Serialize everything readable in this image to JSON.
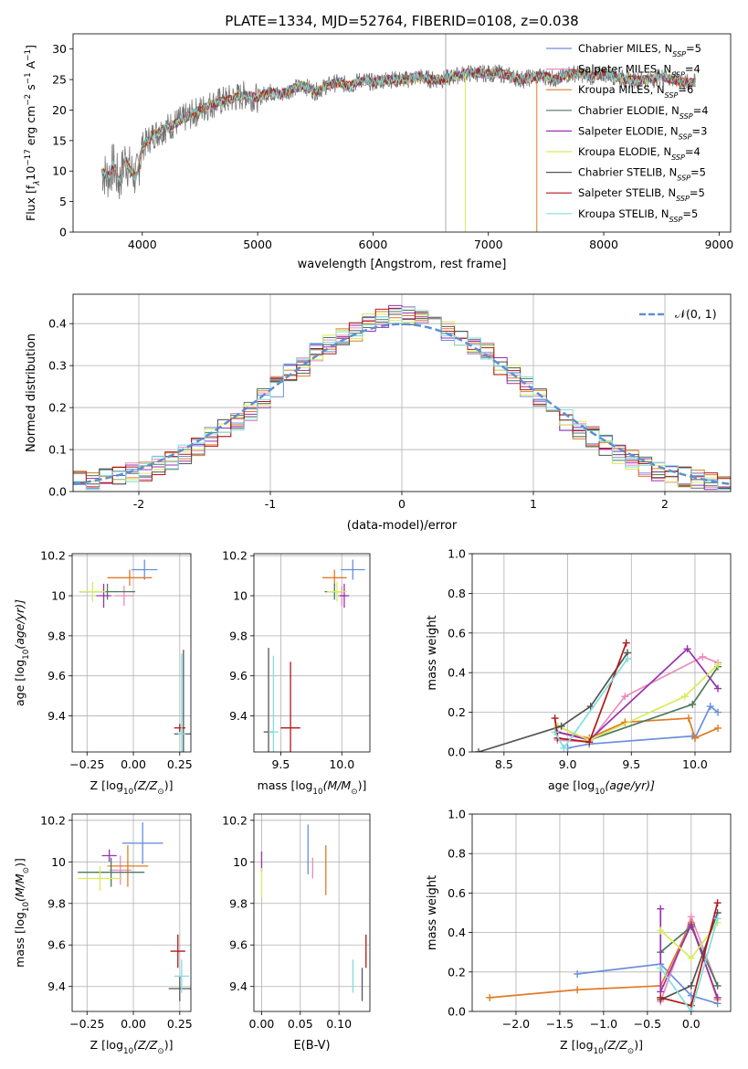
{
  "title": "PLATE=1334, MJD=52764, FIBERID=0108, z=0.038",
  "colors": {
    "Chabrier MILES": "#6a8fdc",
    "Salpeter MILES": "#e88cbc",
    "Kroupa MILES": "#e07b25",
    "Chabrier ELODIE": "#4c7a5c",
    "Salpeter ELODIE": "#9b30b0",
    "Kroupa ELODIE": "#d8ec5a",
    "Chabrier STELIB": "#555555",
    "Salpeter STELIB": "#b01818",
    "Kroupa STELIB": "#80dede"
  },
  "chart_data": [
    {
      "type": "line",
      "name": "spectrum",
      "xlabel": "wavelength [Angstrom, rest frame]",
      "ylabel": "Flux [f",
      "ylabel_parts": [
        "Flux [f",
        "λ",
        "10",
        "−17",
        " erg cm",
        "−2",
        " s",
        "−1",
        " A",
        "−1",
        "]"
      ],
      "xlim": [
        3400,
        9100
      ],
      "ylim": [
        0,
        32.5
      ],
      "xticks": [
        4000,
        5000,
        6000,
        7000,
        8000,
        9000
      ],
      "yticks": [
        0,
        5,
        10,
        15,
        20,
        25,
        30
      ],
      "grid": false,
      "legend": "upper right",
      "data_x": [
        3650,
        3700,
        3750,
        3800,
        3850,
        3900,
        3950,
        4000,
        4100,
        4200,
        4300,
        4400,
        4500,
        4600,
        4700,
        4800,
        4900,
        5000,
        5100,
        5200,
        5300,
        5400,
        5500,
        5600,
        5700,
        5800,
        5900,
        6000,
        6100,
        6200,
        6300,
        6400,
        6500,
        6600,
        6700,
        6800,
        6900,
        7000,
        7100,
        7200,
        7300,
        7400,
        7500,
        7600,
        7700,
        7800,
        7900,
        8000,
        8100,
        8200,
        8300,
        8400,
        8500,
        8600,
        8700,
        8800
      ],
      "data_y": [
        10,
        9,
        11,
        8,
        12,
        10,
        9,
        14,
        16,
        17,
        18,
        19,
        20,
        21,
        21.5,
        22,
        22.5,
        22,
        23,
        22.5,
        23.5,
        24,
        23,
        24,
        24.5,
        24,
        25,
        24.5,
        25,
        25,
        25,
        25.5,
        25,
        25,
        25.5,
        26,
        26,
        26,
        26,
        25.5,
        25,
        25.5,
        25.5,
        25,
        26,
        26,
        25.5,
        26,
        25.5,
        25,
        25,
        25,
        25.5,
        25,
        24.5,
        24.5
      ],
      "series": [
        {
          "name": "Chabrier MILES, N",
          "sub": "SSP",
          "suffix": "=5"
        },
        {
          "name": "Salpeter MILES, N",
          "sub": "SSP",
          "suffix": "=4"
        },
        {
          "name": "Kroupa MILES, N",
          "sub": "SSP",
          "suffix": "=6"
        },
        {
          "name": "Chabrier ELODIE, N",
          "sub": "SSP",
          "suffix": "=4"
        },
        {
          "name": "Salpeter ELODIE, N",
          "sub": "SSP",
          "suffix": "=3"
        },
        {
          "name": "Kroupa ELODIE, N",
          "sub": "SSP",
          "suffix": "=4"
        },
        {
          "name": "Chabrier STELIB, N",
          "sub": "SSP",
          "suffix": "=5"
        },
        {
          "name": "Salpeter STELIB, N",
          "sub": "SSP",
          "suffix": "=5"
        },
        {
          "name": "Kroupa STELIB, N",
          "sub": "SSP",
          "suffix": "=5"
        }
      ]
    },
    {
      "type": "line",
      "name": "residual_histogram",
      "xlabel": "(data-model)/error",
      "ylabel": "Normed distribution",
      "xlim": [
        -2.5,
        2.5
      ],
      "ylim": [
        0,
        0.47
      ],
      "xticks": [
        -2,
        -1,
        0,
        1,
        2
      ],
      "yticks": [
        0.0,
        0.1,
        0.2,
        0.3,
        0.4
      ],
      "grid": true,
      "legend": "upper right",
      "legend_label": "𝒩(0, 1)",
      "bin_width": 0.1,
      "hist_x": [
        -2.5,
        -2.4,
        -2.3,
        -2.2,
        -2.1,
        -2.0,
        -1.9,
        -1.8,
        -1.7,
        -1.6,
        -1.5,
        -1.4,
        -1.3,
        -1.2,
        -1.1,
        -1.0,
        -0.9,
        -0.8,
        -0.7,
        -0.6,
        -0.5,
        -0.4,
        -0.3,
        -0.2,
        -0.1,
        0.0,
        0.1,
        0.2,
        0.3,
        0.4,
        0.5,
        0.6,
        0.7,
        0.8,
        0.9,
        1.0,
        1.1,
        1.2,
        1.3,
        1.4,
        1.5,
        1.6,
        1.7,
        1.8,
        1.9,
        2.0,
        2.1,
        2.2,
        2.3,
        2.4
      ],
      "hist_y": [
        0.025,
        0.022,
        0.03,
        0.035,
        0.045,
        0.05,
        0.06,
        0.075,
        0.09,
        0.11,
        0.13,
        0.15,
        0.17,
        0.19,
        0.22,
        0.25,
        0.28,
        0.3,
        0.33,
        0.35,
        0.37,
        0.38,
        0.4,
        0.41,
        0.42,
        0.42,
        0.41,
        0.4,
        0.38,
        0.37,
        0.35,
        0.33,
        0.3,
        0.28,
        0.25,
        0.22,
        0.2,
        0.17,
        0.15,
        0.13,
        0.11,
        0.09,
        0.075,
        0.06,
        0.05,
        0.04,
        0.035,
        0.03,
        0.025,
        0.02
      ],
      "series": [
        {
          "name": "𝒩(0, 1)",
          "type": "gaussian",
          "mu": 0,
          "sigma": 1
        }
      ]
    },
    {
      "type": "scatter",
      "name": "age_vs_Z",
      "xlabel": "Z [log",
      "xlabel_parts": [
        "Z [log",
        "10",
        "(Z/Z",
        "⊙",
        ")]"
      ],
      "ylabel_parts": [
        "age  [log",
        "10",
        "(age/yr)]"
      ],
      "xlim": [
        -0.33,
        0.31
      ],
      "ylim": [
        9.22,
        10.21
      ],
      "xticks": [
        -0.25,
        0.0,
        0.25
      ],
      "xticklabels": [
        "−0.25",
        "0.00",
        "0.25"
      ],
      "yticks": [
        9.4,
        9.6,
        9.8,
        10.0,
        10.2
      ],
      "grid": true,
      "points": [
        {
          "series": "Chabrier MILES",
          "x": 0.06,
          "y": 10.13,
          "xerr": 0.07,
          "yerr": 0.05
        },
        {
          "series": "Salpeter MILES",
          "x": -0.05,
          "y": 10.0,
          "xerr": 0.05,
          "yerr": 0.05
        },
        {
          "series": "Kroupa MILES",
          "x": -0.02,
          "y": 10.09,
          "xerr": 0.12,
          "yerr": 0.04
        },
        {
          "series": "Chabrier ELODIE",
          "x": -0.14,
          "y": 10.02,
          "xerr": 0.15,
          "yerr": 0.04
        },
        {
          "series": "Salpeter ELODIE",
          "x": -0.16,
          "y": 10.0,
          "xerr": 0.04,
          "yerr": 0.06
        },
        {
          "series": "Kroupa ELODIE",
          "x": -0.22,
          "y": 10.02,
          "xerr": 0.07,
          "yerr": 0.05
        },
        {
          "series": "Chabrier STELIB",
          "x": 0.27,
          "y": 9.31,
          "xerr": 0.05,
          "yerr": 0.42
        },
        {
          "series": "Salpeter STELIB",
          "x": 0.25,
          "y": 9.34,
          "xerr": 0.03,
          "yerr": 0.02
        },
        {
          "series": "Kroupa STELIB",
          "x": 0.26,
          "y": 9.31,
          "xerr": 0.02,
          "yerr": 0.4
        }
      ]
    },
    {
      "type": "scatter",
      "name": "age_vs_mass",
      "xlabel_parts": [
        "mass [log",
        "10",
        "(M/M",
        "⊙",
        ")]"
      ],
      "xlim": [
        9.28,
        10.23
      ],
      "ylim": [
        9.22,
        10.21
      ],
      "xticks": [
        9.5,
        10.0
      ],
      "xticklabels": [
        "9.5",
        "10.0"
      ],
      "yticks": [
        9.4,
        9.6,
        9.8,
        10.0,
        10.2
      ],
      "grid": true,
      "points": [
        {
          "series": "Chabrier MILES",
          "x": 10.09,
          "y": 10.13,
          "xerr": 0.1,
          "yerr": 0.05
        },
        {
          "series": "Salpeter MILES",
          "x": 10.0,
          "y": 10.0,
          "xerr": 0.03,
          "yerr": 0.05
        },
        {
          "series": "Kroupa MILES",
          "x": 9.94,
          "y": 10.09,
          "xerr": 0.1,
          "yerr": 0.04
        },
        {
          "series": "Chabrier ELODIE",
          "x": 9.94,
          "y": 10.02,
          "xerr": 0.08,
          "yerr": 0.04
        },
        {
          "series": "Salpeter ELODIE",
          "x": 10.02,
          "y": 10.0,
          "xerr": 0.04,
          "yerr": 0.06
        },
        {
          "series": "Kroupa ELODIE",
          "x": 9.96,
          "y": 10.02,
          "xerr": 0.08,
          "yerr": 0.05
        },
        {
          "series": "Chabrier STELIB",
          "x": 9.4,
          "y": 9.32,
          "xerr": 0.04,
          "yerr": 0.42
        },
        {
          "series": "Salpeter STELIB",
          "x": 9.58,
          "y": 9.34,
          "xerr": 0.08,
          "yerr": 0.33
        },
        {
          "series": "Kroupa STELIB",
          "x": 9.44,
          "y": 9.32,
          "xerr": 0.04,
          "yerr": 0.38
        }
      ]
    },
    {
      "type": "line",
      "name": "mass_weight_vs_age",
      "xlabel_parts": [
        "age  [log",
        "10",
        "(age/yr)]"
      ],
      "ylabel": "mass weight",
      "xlim": [
        8.25,
        10.28
      ],
      "ylim": [
        0,
        1.0
      ],
      "xticks": [
        8.5,
        9.0,
        9.5,
        10.0
      ],
      "xticklabels": [
        "8.5",
        "9.0",
        "9.5",
        "10.0"
      ],
      "yticks": [
        0.0,
        0.2,
        0.4,
        0.6,
        0.8,
        1.0
      ],
      "grid": true,
      "series": [
        {
          "name": "Chabrier MILES",
          "x": [
            9.0,
            9.17,
            9.98,
            10.0,
            10.12,
            10.18
          ],
          "y": [
            0.02,
            0.04,
            0.08,
            0.07,
            0.23,
            0.2
          ]
        },
        {
          "name": "Salpeter MILES",
          "x": [
            8.92,
            9.17,
            9.45,
            10.06,
            10.18
          ],
          "y": [
            0.06,
            0.05,
            0.28,
            0.48,
            0.45
          ]
        },
        {
          "name": "Kroupa MILES",
          "x": [
            8.92,
            9.17,
            9.45,
            9.95,
            10.0,
            10.18
          ],
          "y": [
            0.1,
            0.07,
            0.15,
            0.17,
            0.07,
            0.12
          ]
        },
        {
          "name": "Chabrier ELODIE",
          "x": [
            8.92,
            9.17,
            9.98,
            10.18
          ],
          "y": [
            0.13,
            0.06,
            0.24,
            0.43
          ]
        },
        {
          "name": "Salpeter ELODIE",
          "x": [
            8.92,
            9.17,
            9.94,
            10.18
          ],
          "y": [
            0.1,
            0.06,
            0.52,
            0.32
          ]
        },
        {
          "name": "Kroupa ELODIE",
          "x": [
            8.92,
            9.17,
            9.92,
            10.18
          ],
          "y": [
            0.13,
            0.06,
            0.28,
            0.44
          ]
        },
        {
          "name": "Chabrier STELIB",
          "x": [
            8.3,
            8.95,
            9.18,
            9.47
          ],
          "y": [
            0.0,
            0.13,
            0.23,
            0.5
          ]
        },
        {
          "name": "Salpeter STELIB",
          "x": [
            8.9,
            8.92,
            9.17,
            9.46
          ],
          "y": [
            0.17,
            0.07,
            0.05,
            0.55
          ]
        },
        {
          "name": "Kroupa STELIB",
          "x": [
            8.9,
            8.97,
            9.47
          ],
          "y": [
            0.1,
            0.02,
            0.47
          ]
        }
      ]
    },
    {
      "type": "scatter",
      "name": "mass_vs_Z",
      "xlabel_parts": [
        "Z [log",
        "10",
        "(Z/Z",
        "⊙",
        ")]"
      ],
      "ylabel_parts": [
        "mass [log",
        "10",
        "(M/M",
        "⊙",
        ")]"
      ],
      "xlim": [
        -0.33,
        0.31
      ],
      "ylim": [
        9.28,
        10.23
      ],
      "xticks": [
        -0.25,
        0.0,
        0.25
      ],
      "xticklabels": [
        "−0.25",
        "0.00",
        "0.25"
      ],
      "yticks": [
        9.4,
        9.6,
        9.8,
        10.0,
        10.2
      ],
      "grid": true,
      "points": [
        {
          "series": "Chabrier MILES",
          "x": 0.05,
          "y": 10.09,
          "xerr": 0.11,
          "yerr": 0.1
        },
        {
          "series": "Salpeter MILES",
          "x": -0.07,
          "y": 9.96,
          "xerr": 0.06,
          "yerr": 0.07
        },
        {
          "series": "Kroupa MILES",
          "x": -0.03,
          "y": 9.98,
          "xerr": 0.11,
          "yerr": 0.1
        },
        {
          "series": "Chabrier ELODIE",
          "x": -0.12,
          "y": 9.95,
          "xerr": 0.18,
          "yerr": 0.07
        },
        {
          "series": "Salpeter ELODIE",
          "x": -0.13,
          "y": 10.03,
          "xerr": 0.04,
          "yerr": 0.03
        },
        {
          "series": "Kroupa ELODIE",
          "x": -0.18,
          "y": 9.92,
          "xerr": 0.12,
          "yerr": 0.06
        },
        {
          "series": "Chabrier STELIB",
          "x": 0.25,
          "y": 9.39,
          "xerr": 0.06,
          "yerr": 0.06
        },
        {
          "series": "Salpeter STELIB",
          "x": 0.24,
          "y": 9.57,
          "xerr": 0.04,
          "yerr": 0.08
        },
        {
          "series": "Kroupa STELIB",
          "x": 0.26,
          "y": 9.45,
          "xerr": 0.04,
          "yerr": 0.08
        }
      ]
    },
    {
      "type": "scatter",
      "name": "mass_vs_EBV",
      "xlabel": "E(B-V)",
      "xlim": [
        -0.01,
        0.14
      ],
      "ylim": [
        9.28,
        10.23
      ],
      "xticks": [
        0.0,
        0.05,
        0.1
      ],
      "xticklabels": [
        "0.00",
        "0.05",
        "0.10"
      ],
      "yticks": [
        9.4,
        9.6,
        9.8,
        10.0,
        10.2
      ],
      "grid": true,
      "points": [
        {
          "series": "Chabrier MILES",
          "x": 0.06,
          "y": 10.06,
          "xerr": 0.0,
          "yerr": 0.12
        },
        {
          "series": "Salpeter MILES",
          "x": 0.066,
          "y": 9.97,
          "xerr": 0.0,
          "yerr": 0.05
        },
        {
          "series": "Kroupa MILES",
          "x": 0.083,
          "y": 9.96,
          "xerr": 0.0,
          "yerr": 0.12
        },
        {
          "series": "Salpeter ELODIE",
          "x": 0.0,
          "y": 10.0,
          "xerr": 0.0,
          "yerr": 0.05
        },
        {
          "series": "Kroupa ELODIE",
          "x": 0.0,
          "y": 9.9,
          "xerr": 0.0,
          "yerr": 0.07
        },
        {
          "series": "Chabrier STELIB",
          "x": 0.13,
          "y": 9.41,
          "xerr": 0.0,
          "yerr": 0.08
        },
        {
          "series": "Salpeter STELIB",
          "x": 0.135,
          "y": 9.57,
          "xerr": 0.0,
          "yerr": 0.08
        },
        {
          "series": "Kroupa STELIB",
          "x": 0.118,
          "y": 9.45,
          "xerr": 0.0,
          "yerr": 0.08
        }
      ]
    },
    {
      "type": "line",
      "name": "mass_weight_vs_Z",
      "xlabel_parts": [
        "Z [log",
        "10",
        "(Z/Z",
        "⊙",
        ")]"
      ],
      "ylabel": "mass weight",
      "xlim": [
        -2.5,
        0.45
      ],
      "ylim": [
        0,
        1.0
      ],
      "xticks": [
        -2.0,
        -1.5,
        -1.0,
        -0.5,
        0.0
      ],
      "xticklabels": [
        "−2.0",
        "−1.5",
        "−1.0",
        "−0.5",
        "0.0"
      ],
      "yticks": [
        0.0,
        0.2,
        0.4,
        0.6,
        0.8,
        1.0
      ],
      "grid": true,
      "series": [
        {
          "name": "Chabrier MILES",
          "x": [
            -1.3,
            -0.35,
            0.0,
            0.3
          ],
          "y": [
            0.19,
            0.24,
            0.08,
            0.04
          ]
        },
        {
          "name": "Salpeter MILES",
          "x": [
            -0.35,
            0.0,
            0.3
          ],
          "y": [
            0.05,
            0.48,
            0.13
          ]
        },
        {
          "name": "Kroupa MILES",
          "x": [
            -2.3,
            -1.3,
            -0.35,
            0.0,
            0.3
          ],
          "y": [
            0.07,
            0.11,
            0.13,
            0.45,
            0.06
          ]
        },
        {
          "name": "Chabrier ELODIE",
          "x": [
            -0.35,
            0.0,
            0.3
          ],
          "y": [
            0.3,
            0.43,
            0.13
          ]
        },
        {
          "name": "Salpeter ELODIE",
          "x": [
            -0.35,
            -0.35,
            0.0,
            0.3
          ],
          "y": [
            0.52,
            0.1,
            0.44,
            0.07
          ]
        },
        {
          "name": "Kroupa ELODIE",
          "x": [
            -0.35,
            0.0,
            0.3
          ],
          "y": [
            0.41,
            0.27,
            0.45
          ]
        },
        {
          "name": "Chabrier STELIB",
          "x": [
            -0.35,
            0.0,
            0.3
          ],
          "y": [
            0.06,
            0.13,
            0.5
          ]
        },
        {
          "name": "Salpeter STELIB",
          "x": [
            -0.35,
            0.0,
            0.3
          ],
          "y": [
            0.07,
            0.03,
            0.55
          ]
        },
        {
          "name": "Kroupa STELIB",
          "x": [
            -0.35,
            0.0,
            0.3
          ],
          "y": [
            0.22,
            0.0,
            0.47
          ]
        }
      ]
    }
  ]
}
